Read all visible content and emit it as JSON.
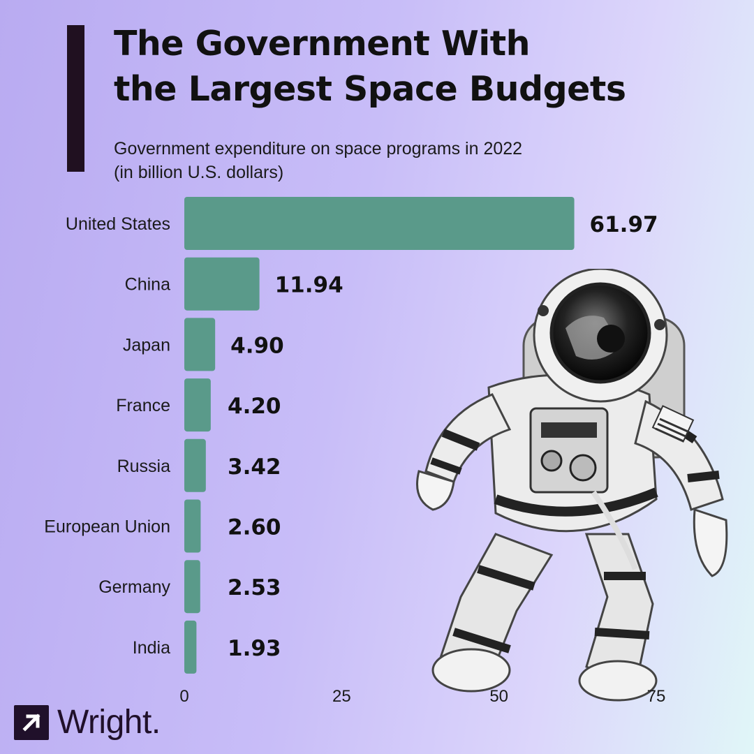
{
  "header": {
    "title_line1": "The Government With",
    "title_line2": "the Largest Space Budgets",
    "subtitle_line1": "Government expenditure on space programs in 2022",
    "subtitle_line2": "(in billion U.S. dollars)"
  },
  "brand": {
    "name": "Wright.",
    "icon": "arrow-up-right-icon"
  },
  "colors": {
    "bar": "#5a9a8a",
    "title_bar": "#201020",
    "text": "#111111"
  },
  "chart_data": {
    "type": "bar",
    "orientation": "horizontal",
    "categories": [
      "United States",
      "China",
      "Japan",
      "France",
      "Russia",
      "European Union",
      "Germany",
      "India"
    ],
    "values": [
      61.97,
      11.94,
      4.9,
      4.2,
      3.42,
      2.6,
      2.53,
      1.93
    ],
    "value_labels": [
      "61.97",
      "11.94",
      "4.90",
      "4.20",
      "3.42",
      "2.60",
      "2.53",
      "1.93"
    ],
    "title": "The Government With the Largest Space Budgets",
    "subtitle": "Government expenditure on space programs in 2022 (in billion U.S. dollars)",
    "xlim": [
      0,
      75
    ],
    "xticks": [
      0,
      25,
      50,
      75
    ],
    "grid": false,
    "legend": false
  }
}
